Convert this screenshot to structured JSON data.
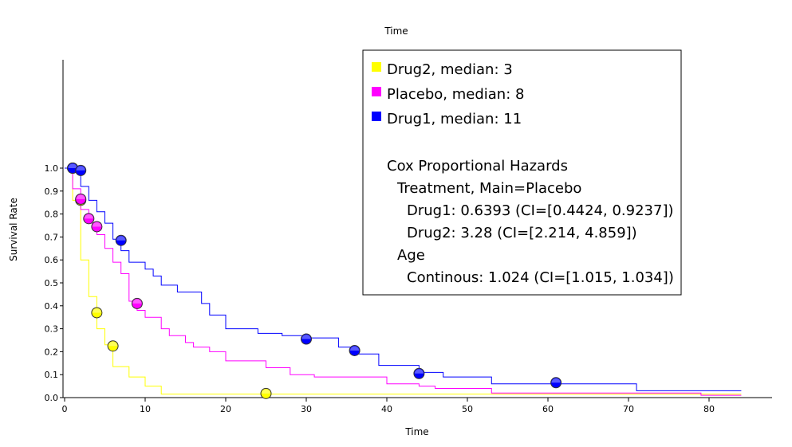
{
  "chart_data": {
    "type": "line",
    "step": true,
    "top_label": "Time",
    "xlabel": "Time",
    "ylabel": "Survival Rate",
    "xlim": [
      0,
      88
    ],
    "ylim": [
      0,
      1.0
    ],
    "xticks": [
      0,
      10,
      20,
      30,
      40,
      50,
      60,
      70,
      80
    ],
    "yticks": [
      0.0,
      0.1,
      0.2,
      0.3,
      0.4,
      0.5,
      0.6,
      0.7,
      0.8,
      0.9,
      1.0
    ],
    "ytick_labels": [
      "0.0",
      "0.1",
      "0.2",
      "0.3",
      "0.4",
      "0.5",
      "0.6",
      "0.7",
      "0.8",
      "0.9",
      "1.0"
    ],
    "series": [
      {
        "name": "Drug2, median: 3",
        "color": "#ffff00",
        "x": [
          0,
          1,
          2,
          3,
          4,
          5,
          6,
          8,
          10,
          12,
          25,
          84
        ],
        "y": [
          1.0,
          0.86,
          0.6,
          0.44,
          0.3,
          0.23,
          0.135,
          0.09,
          0.05,
          0.015,
          0.015,
          0.015
        ],
        "censored": [
          [
            1,
            1.0
          ],
          [
            2,
            0.86
          ],
          [
            4,
            0.37
          ],
          [
            6,
            0.225
          ],
          [
            25,
            0.018
          ]
        ]
      },
      {
        "name": "Placebo, median: 8",
        "color": "#ff00ff",
        "x": [
          0,
          1,
          2,
          3,
          4,
          5,
          6,
          7,
          8,
          9,
          10,
          12,
          13,
          15,
          16,
          18,
          20,
          25,
          28,
          31,
          40,
          44,
          46,
          53,
          79,
          84
        ],
        "y": [
          1.0,
          0.91,
          0.82,
          0.76,
          0.71,
          0.65,
          0.59,
          0.54,
          0.42,
          0.38,
          0.35,
          0.3,
          0.27,
          0.24,
          0.22,
          0.2,
          0.16,
          0.13,
          0.1,
          0.09,
          0.06,
          0.05,
          0.04,
          0.02,
          0.01,
          0.01
        ],
        "censored": [
          [
            2,
            0.865
          ],
          [
            3,
            0.78
          ],
          [
            4,
            0.745
          ],
          [
            9,
            0.41
          ]
        ]
      },
      {
        "name": "Drug1, median: 11",
        "color": "#0000ff",
        "x": [
          0,
          2,
          3,
          4,
          5,
          6,
          7,
          8,
          10,
          11,
          12,
          14,
          17,
          18,
          20,
          24,
          27,
          30,
          34,
          36,
          39,
          44,
          47,
          53,
          71,
          84
        ],
        "y": [
          1.0,
          0.92,
          0.86,
          0.81,
          0.76,
          0.69,
          0.64,
          0.59,
          0.56,
          0.53,
          0.49,
          0.46,
          0.41,
          0.36,
          0.3,
          0.28,
          0.27,
          0.26,
          0.22,
          0.19,
          0.14,
          0.11,
          0.09,
          0.06,
          0.03,
          0.03
        ],
        "censored": [
          [
            1,
            1.0
          ],
          [
            2,
            0.99
          ],
          [
            7,
            0.685
          ],
          [
            30,
            0.255
          ],
          [
            36,
            0.205
          ],
          [
            44,
            0.105
          ],
          [
            61,
            0.065
          ]
        ]
      }
    ],
    "legend_position": "top-right",
    "annotation": {
      "heading": "Cox Proportional Hazards",
      "lines": [
        "Treatment, Main=Placebo",
        "Drug1: 0.6393 (CI=[0.4424, 0.9237])",
        "Drug2: 3.28 (CI=[2.214, 4.859])",
        "Age",
        "Continous: 1.024 (CI=[1.015, 1.034])"
      ]
    }
  }
}
